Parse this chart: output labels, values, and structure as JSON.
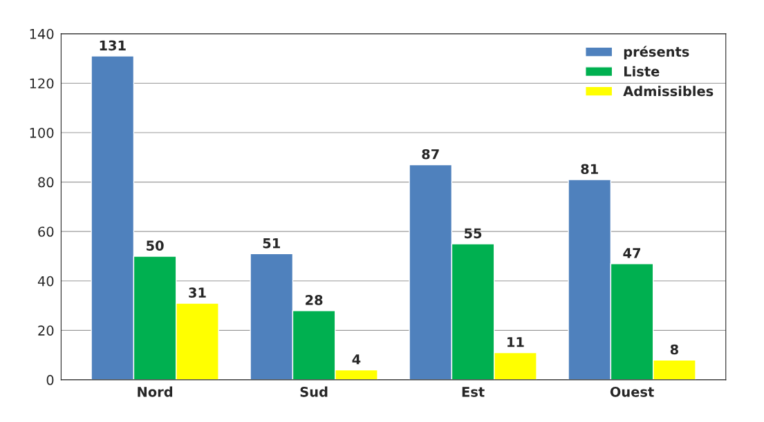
{
  "chart_data": {
    "type": "bar",
    "categories": [
      "Nord",
      "Sud",
      "Est",
      "Ouest"
    ],
    "series": [
      {
        "name": "présents",
        "color": "#4f81bd",
        "values": [
          131,
          51,
          87,
          81
        ]
      },
      {
        "name": "Liste",
        "color": "#00b050",
        "values": [
          50,
          28,
          55,
          47
        ]
      },
      {
        "name": "Admissibles",
        "color": "#ffff00",
        "values": [
          31,
          4,
          11,
          8
        ]
      }
    ],
    "ylim": [
      0,
      140
    ],
    "yticks": [
      0,
      20,
      40,
      60,
      80,
      100,
      120,
      140
    ],
    "grid": "y",
    "legend": "top right",
    "data_labels": true
  }
}
